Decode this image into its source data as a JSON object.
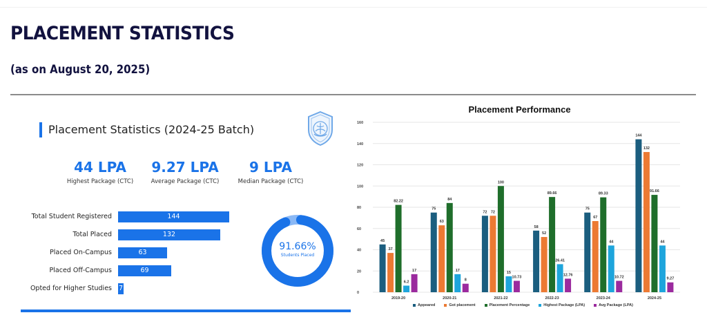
{
  "header": {
    "title": "PLACEMENT STATISTICS",
    "subtitle": "(as on August 20, 2025)"
  },
  "summary": {
    "heading": "Placement Statistics (2024-25 Batch)",
    "logo_icon": "college-crest-icon",
    "kpis": [
      {
        "value": "44 LPA",
        "label": "Highest Package (CTC)"
      },
      {
        "value": "9.27 LPA",
        "label": "Average Package (CTC)"
      },
      {
        "value": "9 LPA",
        "label": "Median Package (CTC)"
      }
    ],
    "bars": [
      {
        "label": "Total Student Registered",
        "value": 144
      },
      {
        "label": "Total Placed",
        "value": 132
      },
      {
        "label": "Placed On-Campus",
        "value": 63
      },
      {
        "label": "Placed Off-Campus",
        "value": 69
      },
      {
        "label": "Opted for Higher Studies",
        "value": 7
      }
    ],
    "donut": {
      "percent": 91.66,
      "percent_label": "91.66%",
      "caption": "Students Placed"
    }
  },
  "colors": {
    "accent": "#1a73e8",
    "donut_remainder": "#8ab8f5",
    "title": "#12123f",
    "appeared": "#1b5e7f",
    "got_placement": "#ec7a33",
    "placement_percentage": "#1f6e2b",
    "highest_package": "#1ea5dc",
    "avg_package": "#9b2a9e"
  },
  "chart_data": [
    {
      "type": "bar",
      "title": "Placement Statistics (2024-25 Batch)",
      "orientation": "horizontal",
      "categories": [
        "Total Student Registered",
        "Total Placed",
        "Placed On-Campus",
        "Placed Off-Campus",
        "Opted for Higher Studies"
      ],
      "values": [
        144,
        132,
        63,
        69,
        7
      ]
    },
    {
      "type": "pie",
      "title": "Students Placed",
      "categories": [
        "Placed",
        "Not placed"
      ],
      "values": [
        91.66,
        8.34
      ]
    },
    {
      "type": "bar",
      "title": "Placement Performance",
      "xlabel": "",
      "ylabel": "",
      "ylim": [
        0,
        160
      ],
      "yticks": [
        0,
        20,
        40,
        60,
        80,
        100,
        120,
        140,
        160
      ],
      "grid": true,
      "legend_position": "bottom",
      "categories": [
        "2019-20",
        "2020-21",
        "2021-22",
        "2022-23",
        "2023-24",
        "2024-25"
      ],
      "series": [
        {
          "name": "Appeared",
          "values": [
            45,
            75,
            72,
            58,
            75,
            144
          ]
        },
        {
          "name": "Got placement",
          "values": [
            37,
            63,
            72,
            52,
            67,
            132
          ]
        },
        {
          "name": "Placement Percentage",
          "values": [
            82.22,
            84,
            100,
            89.66,
            89.33,
            91.66
          ]
        },
        {
          "name": "Highest Package (LPA)",
          "values": [
            6.2,
            17,
            15,
            26.41,
            44,
            44
          ]
        },
        {
          "name": "Avg Package  (LPA)",
          "values": [
            17,
            8,
            10.73,
            12.76,
            10.72,
            9.27
          ]
        }
      ]
    }
  ],
  "performance_chart": {
    "title": "Placement Performance",
    "legend": [
      {
        "label": "Appeared"
      },
      {
        "label": "Got placement"
      },
      {
        "label": "Placement Percentage"
      },
      {
        "label": "Highest Package (LPA)"
      },
      {
        "label": "Avg Package  (LPA)"
      }
    ]
  }
}
